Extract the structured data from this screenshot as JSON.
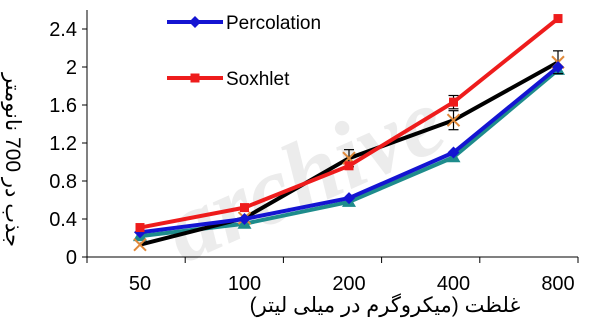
{
  "chart_data": {
    "type": "line",
    "categories": [
      "50",
      "100",
      "200",
      "400",
      "800"
    ],
    "ylim": [
      0,
      2.6
    ],
    "yticks": [
      "0",
      "0.4",
      "0.8",
      "1.2",
      "1.6",
      "2",
      "2.4"
    ],
    "xlabel": "غلظت (میکروگرم در میلی لیتر)",
    "ylabel": "جذب در 700 نانومتر",
    "legend_placement": "top-left",
    "series": [
      {
        "name": "Percolation",
        "color": "#1414d2",
        "marker": "diamond",
        "values": [
          0.26,
          0.4,
          0.62,
          1.1,
          2.0
        ],
        "errors": [
          0,
          0,
          0,
          0,
          0
        ]
      },
      {
        "name": "Soxhlet",
        "color": "#ee1c1c",
        "marker": "square",
        "values": [
          0.31,
          0.52,
          0.96,
          1.63,
          2.51
        ],
        "errors": [
          0,
          0,
          0,
          0.07,
          0
        ]
      },
      {
        "name": "",
        "color": "#000000",
        "marker": "x",
        "values": [
          0.13,
          0.41,
          1.04,
          1.44,
          2.05
        ],
        "errors": [
          0,
          0,
          0.09,
          0.1,
          0.12
        ]
      },
      {
        "name": "",
        "color": "#1e8c8c",
        "marker": "triangle",
        "values": [
          0.22,
          0.35,
          0.58,
          1.05,
          1.97
        ],
        "errors": [
          0,
          0,
          0,
          0,
          0
        ]
      }
    ]
  }
}
